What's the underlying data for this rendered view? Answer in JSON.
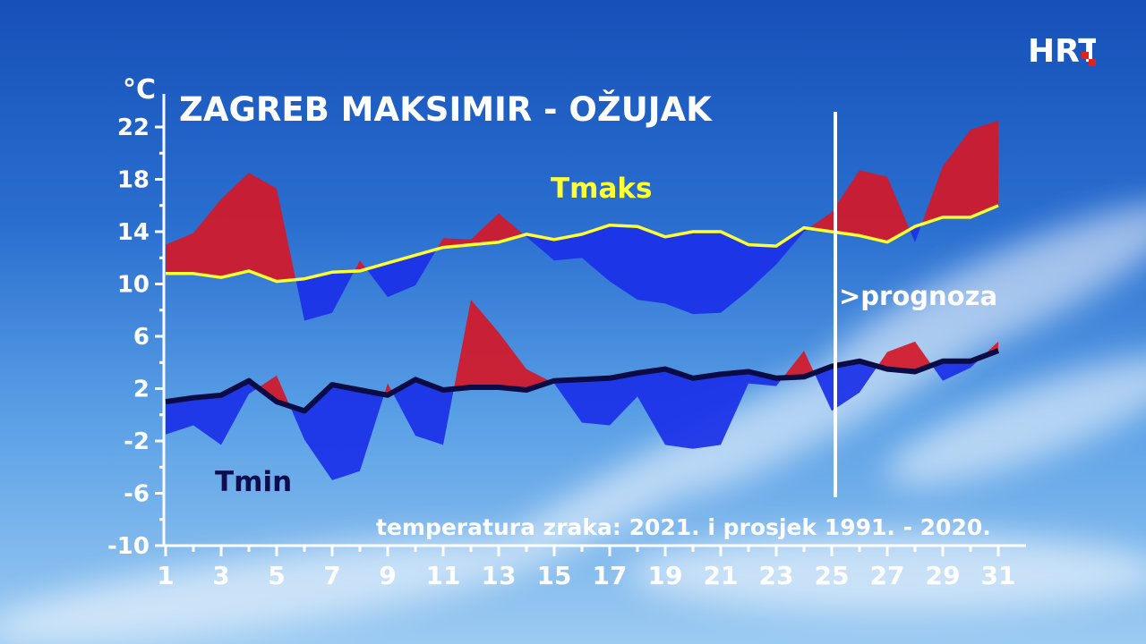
{
  "logo": {
    "text": "HRT",
    "accent": "#e2231a"
  },
  "chart_data": {
    "type": "area",
    "title": "ZAGREB MAKSIMIR - OŽUJAK",
    "ylabel": "°C",
    "subtitle": "temperatura zraka: 2021. i prosjek 1991. - 2020.",
    "forecast_label": ">prognoza",
    "forecast_from_day": 25,
    "ylim": [
      -10,
      22
    ],
    "yticks": [
      -10,
      -6,
      -2,
      2,
      6,
      10,
      14,
      18,
      22
    ],
    "xticks": [
      1,
      3,
      5,
      7,
      9,
      11,
      13,
      15,
      17,
      19,
      21,
      23,
      25,
      27,
      29,
      31
    ],
    "x": [
      1,
      2,
      3,
      4,
      5,
      6,
      7,
      8,
      9,
      10,
      11,
      12,
      13,
      14,
      15,
      16,
      17,
      18,
      19,
      20,
      21,
      22,
      23,
      24,
      25,
      26,
      27,
      28,
      29,
      30,
      31
    ],
    "series": [
      {
        "name": "Tmaks",
        "label_color": "#ffff33",
        "average": [
          10.8,
          10.8,
          10.5,
          11.0,
          10.2,
          10.4,
          10.9,
          11.0,
          11.6,
          12.2,
          12.8,
          13.0,
          13.2,
          13.8,
          13.4,
          13.8,
          14.5,
          14.4,
          13.6,
          14.0,
          14.0,
          13.0,
          12.9,
          14.3,
          14.0,
          13.7,
          13.2,
          14.4,
          15.1,
          15.1,
          16.0
        ],
        "actual": [
          13.0,
          13.9,
          16.5,
          18.5,
          17.3,
          7.2,
          7.8,
          11.8,
          9.0,
          9.9,
          13.5,
          13.4,
          15.4,
          13.6,
          11.8,
          12.0,
          10.2,
          8.8,
          8.5,
          7.7,
          7.8,
          9.5,
          11.5,
          14.0,
          15.5,
          18.7,
          18.2,
          13.2,
          19.0,
          21.8,
          22.5
        ]
      },
      {
        "name": "Tmin",
        "label_color": "#0d0d50",
        "average": [
          1.0,
          1.3,
          1.5,
          2.6,
          1.0,
          0.3,
          2.3,
          1.9,
          1.5,
          2.7,
          1.9,
          2.1,
          2.1,
          1.9,
          2.6,
          2.7,
          2.8,
          3.2,
          3.5,
          2.8,
          3.1,
          3.3,
          2.8,
          2.9,
          3.7,
          4.1,
          3.5,
          3.3,
          4.1,
          4.1,
          4.9
        ],
        "actual": [
          -1.5,
          -0.8,
          -2.3,
          1.6,
          3.0,
          -1.9,
          -5.0,
          -4.3,
          2.4,
          -1.6,
          -2.3,
          8.8,
          6.3,
          3.5,
          2.4,
          -0.6,
          -0.8,
          1.4,
          -2.3,
          -2.6,
          -2.3,
          2.4,
          2.2,
          4.9,
          0.3,
          1.7,
          4.8,
          5.6,
          2.6,
          3.6,
          5.6
        ]
      }
    ],
    "colors": {
      "above": "#d41828",
      "below": "#1a30e8",
      "tmax_line": "#ffff33",
      "tmin_line": "#0b0b45"
    }
  }
}
